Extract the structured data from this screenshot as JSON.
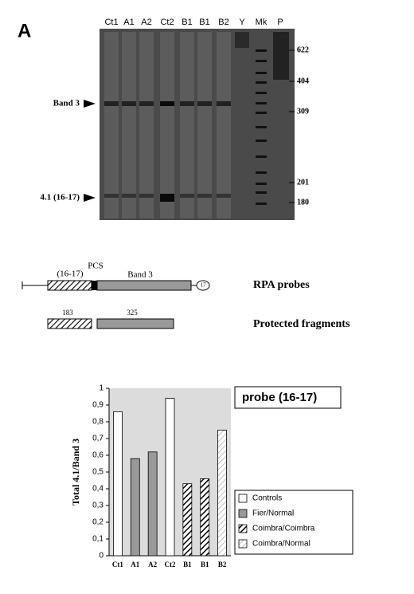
{
  "gel": {
    "panel": "A",
    "lanes": [
      "Ct1",
      "A1",
      "A2",
      "Ct2",
      "B1",
      "B1",
      "B2",
      "Y",
      "Mk",
      "P"
    ],
    "markers": [
      622,
      404,
      309,
      201,
      180
    ],
    "bands": [
      "Band 3",
      "4.1 (16-17)"
    ]
  },
  "diagram": {
    "probe_labels": [
      "(16-17)",
      "PCS",
      "Band 3",
      "17"
    ],
    "probe_title": "RPA probes",
    "fragment_labels": [
      183,
      325
    ],
    "fragment_title": "Protected fragments"
  },
  "chart_data": {
    "type": "bar",
    "title": "probe (16-17)",
    "y_label": "Total 4.1/Band 3",
    "categories": [
      "Ct1",
      "A1",
      "A2",
      "Ct2",
      "B1",
      "B1",
      "B2"
    ],
    "series": [
      {
        "name": "Controls",
        "color": "#ffffff",
        "values": [
          0.86,
          null,
          null,
          0.94,
          null,
          null,
          null
        ]
      },
      {
        "name": "Fier/Normal",
        "color": "#999999",
        "values": [
          null,
          0.58,
          0.62,
          null,
          null,
          null,
          null
        ]
      },
      {
        "name": "Coimbra/Coimbra",
        "color": "#000000",
        "hatch": true,
        "values": [
          null,
          null,
          null,
          null,
          0.43,
          0.46,
          null
        ]
      },
      {
        "name": "Coimbra/Normal",
        "color": "#aaaaaa",
        "hatch": true,
        "values": [
          null,
          null,
          null,
          null,
          null,
          null,
          0.75
        ]
      }
    ],
    "ylim": [
      0,
      1
    ],
    "yticks": [
      0,
      {
        "value": 0.1,
        "label": "0,1"
      },
      {
        "value": 0.2,
        "label": "0,2"
      },
      {
        "value": 0.3,
        "label": "0,3"
      },
      {
        "value": 0.4,
        "label": "0,4"
      },
      {
        "value": 0.5,
        "label": "0,5"
      },
      {
        "value": 0.6,
        "label": "0,6"
      },
      {
        "value": 0.7,
        "label": "0,7"
      },
      {
        "value": 0.8,
        "label": "0,8"
      },
      {
        "value": 0.9,
        "label": "0,9"
      },
      1
    ],
    "legend": "lower-right"
  }
}
